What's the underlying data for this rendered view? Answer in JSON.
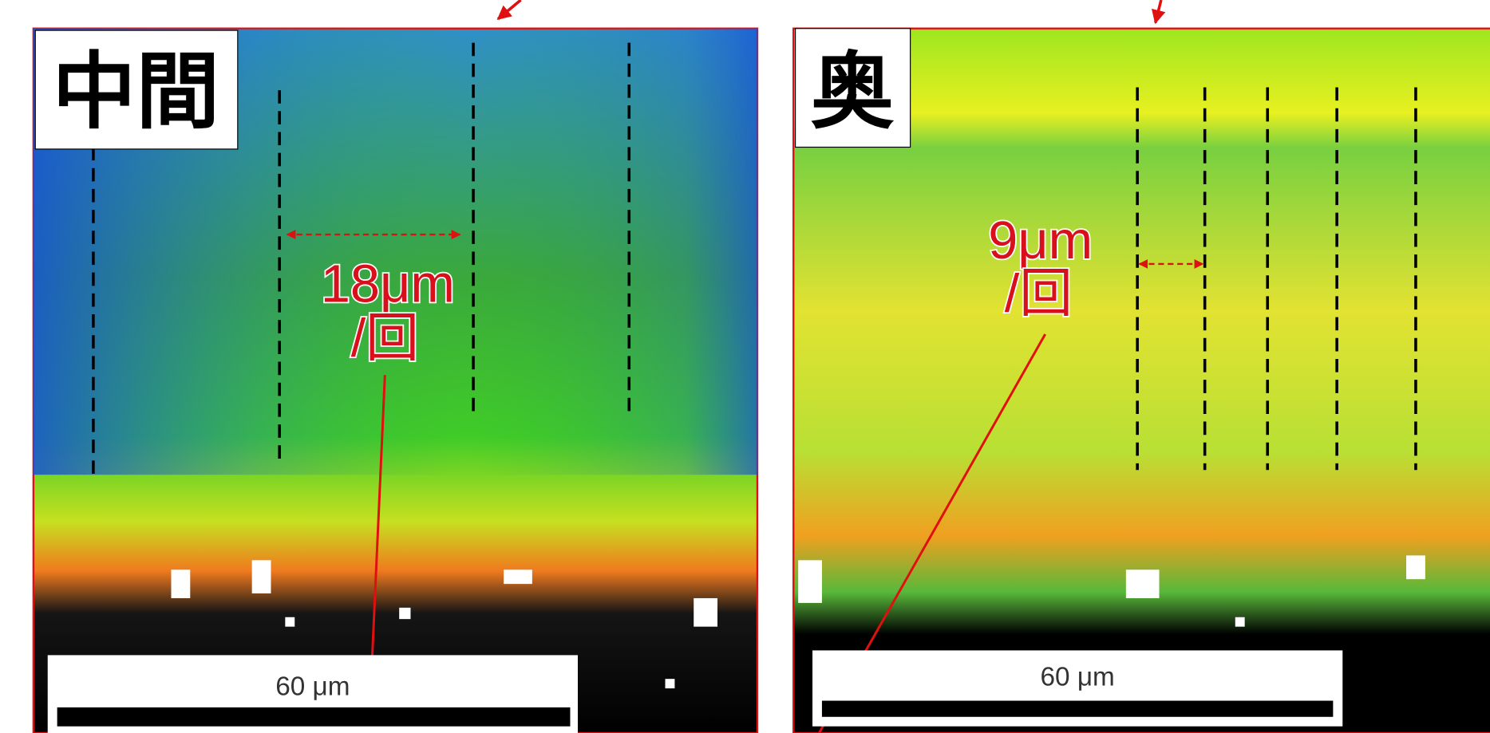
{
  "panels": [
    {
      "label": "中間",
      "annotation": [
        "18μm",
        "/回"
      ],
      "scale_bar": "60 μm"
    },
    {
      "label": "奥",
      "annotation": [
        "9μm",
        "/回"
      ],
      "scale_bar": "60 μm"
    }
  ]
}
